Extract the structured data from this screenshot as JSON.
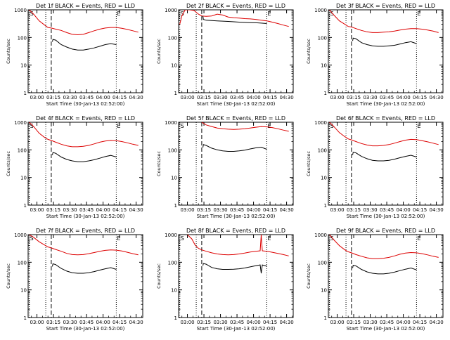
{
  "colors": {
    "events": "#000000",
    "lld": "#dd0000",
    "axes": "#000000"
  },
  "common": {
    "ylabel": "Counts/sec",
    "xlabel": "Start Time (30-Jan-13 02:52:00)",
    "yticks": [
      1,
      10,
      100,
      1000
    ],
    "ytick_labels": [
      "1",
      "10",
      "100",
      "1000"
    ],
    "xticks": [
      "03:00",
      "03:15",
      "03:30",
      "03:45",
      "04:00",
      "04:15",
      "04:30"
    ],
    "xrange_min": [
      0,
      104
    ],
    "yrange": [
      1,
      1000
    ],
    "yscale": "log",
    "marker_S": "S",
    "marker_E": "E"
  },
  "chart_data": [
    {
      "title": "Det 1f BLACK = Events, RED = LLD",
      "type": "line",
      "vlines_dotted_min": [
        1,
        16,
        80
      ],
      "vline_dashed_min": 21,
      "s_marker_min": 1,
      "e_marker_min": 80,
      "series": [
        {
          "color": "lld",
          "x": [
            1,
            5,
            10,
            15,
            18,
            21,
            25,
            30,
            35,
            40,
            45,
            50,
            55,
            60,
            65,
            70,
            75,
            80,
            85,
            90,
            95,
            100
          ],
          "y": [
            1000,
            700,
            400,
            280,
            230,
            220,
            200,
            180,
            150,
            130,
            125,
            130,
            150,
            175,
            200,
            220,
            230,
            230,
            215,
            195,
            175,
            155
          ]
        },
        {
          "color": "events",
          "x": [
            22,
            22.5,
            25,
            30,
            35,
            40,
            45,
            50,
            55,
            60,
            65,
            70,
            75,
            80
          ],
          "y": [
            70,
            85,
            80,
            55,
            45,
            38,
            35,
            35,
            38,
            42,
            48,
            55,
            60,
            55
          ]
        }
      ]
    },
    {
      "title": "Det 2f BLACK = Events, RED = LLD",
      "type": "line",
      "vlines_dotted_min": [
        1,
        16,
        80
      ],
      "vline_dashed_min": 21,
      "s_marker_min": 1,
      "e_marker_min": 80,
      "series": [
        {
          "color": "lld",
          "x": [
            1,
            3,
            6,
            10,
            14,
            18,
            21,
            25,
            30,
            35,
            40,
            45,
            50,
            55,
            60,
            65,
            70,
            75,
            80,
            85,
            90,
            95,
            100
          ],
          "y": [
            300,
            600,
            1000,
            1000,
            950,
            700,
            600,
            580,
            600,
            700,
            650,
            550,
            520,
            500,
            480,
            470,
            450,
            420,
            400,
            360,
            320,
            280,
            250
          ]
        },
        {
          "color": "events",
          "x": [
            22,
            22.5,
            25,
            30,
            35,
            40,
            45,
            50,
            55,
            60,
            65,
            70,
            75,
            80
          ],
          "y": [
            600,
            450,
            420,
            410,
            400,
            390,
            380,
            370,
            360,
            350,
            345,
            340,
            330,
            320
          ]
        }
      ]
    },
    {
      "title": "Det 3f BLACK = Events, RED = LLD",
      "type": "line",
      "vlines_dotted_min": [
        1,
        16,
        80
      ],
      "vline_dashed_min": 21,
      "s_marker_min": 1,
      "e_marker_min": 80,
      "series": [
        {
          "color": "lld",
          "x": [
            1,
            5,
            10,
            15,
            18,
            21,
            25,
            30,
            35,
            40,
            45,
            50,
            55,
            60,
            65,
            70,
            75,
            80,
            85,
            90,
            95,
            100
          ],
          "y": [
            1000,
            650,
            400,
            300,
            250,
            240,
            210,
            180,
            160,
            150,
            150,
            155,
            160,
            170,
            185,
            200,
            210,
            210,
            200,
            185,
            170,
            150
          ]
        },
        {
          "color": "events",
          "x": [
            22,
            22.5,
            25,
            30,
            35,
            40,
            45,
            50,
            55,
            60,
            65,
            70,
            75,
            80
          ],
          "y": [
            75,
            95,
            90,
            65,
            55,
            50,
            48,
            48,
            50,
            52,
            58,
            65,
            70,
            60
          ]
        }
      ]
    },
    {
      "title": "Det 4f BLACK = Events, RED = LLD",
      "type": "line",
      "vlines_dotted_min": [
        1,
        16,
        80
      ],
      "vline_dashed_min": 21,
      "s_marker_min": 1,
      "e_marker_min": 80,
      "series": [
        {
          "color": "lld",
          "x": [
            1,
            5,
            10,
            15,
            18,
            21,
            25,
            30,
            35,
            40,
            45,
            50,
            55,
            60,
            65,
            70,
            75,
            80,
            85,
            90,
            95,
            100
          ],
          "y": [
            1000,
            700,
            400,
            280,
            240,
            220,
            190,
            160,
            140,
            130,
            130,
            135,
            145,
            165,
            190,
            210,
            220,
            215,
            200,
            180,
            160,
            145
          ]
        },
        {
          "color": "events",
          "x": [
            22,
            22.5,
            25,
            30,
            35,
            40,
            45,
            50,
            55,
            60,
            65,
            70,
            75,
            80
          ],
          "y": [
            65,
            80,
            75,
            55,
            45,
            40,
            37,
            37,
            40,
            44,
            50,
            57,
            63,
            55
          ]
        }
      ]
    },
    {
      "title": "Det 5f BLACK = Events, RED = LLD",
      "type": "line",
      "vlines_dotted_min": [
        1,
        16,
        80
      ],
      "vline_dashed_min": 21,
      "s_marker_min": 1,
      "e_marker_min": 80,
      "series": [
        {
          "color": "lld",
          "x": [
            21,
            22,
            25,
            30,
            35,
            40,
            45,
            50,
            55,
            60,
            65,
            70,
            75,
            80,
            85,
            90,
            95,
            100
          ],
          "y": [
            1000,
            950,
            800,
            700,
            620,
            580,
            560,
            550,
            560,
            580,
            620,
            660,
            690,
            680,
            640,
            580,
            520,
            470
          ]
        },
        {
          "color": "events",
          "x": [
            22,
            22.5,
            25,
            30,
            35,
            40,
            45,
            50,
            55,
            60,
            65,
            70,
            75,
            80
          ],
          "y": [
            120,
            155,
            145,
            115,
            100,
            92,
            88,
            88,
            92,
            98,
            108,
            118,
            125,
            105
          ]
        }
      ]
    },
    {
      "title": "Det 6f BLACK = Events, RED = LLD",
      "type": "line",
      "vlines_dotted_min": [
        1,
        16,
        80
      ],
      "vline_dashed_min": 21,
      "s_marker_min": 1,
      "e_marker_min": 80,
      "series": [
        {
          "color": "lld",
          "x": [
            1,
            5,
            10,
            15,
            18,
            21,
            25,
            30,
            35,
            40,
            45,
            50,
            55,
            60,
            65,
            70,
            75,
            80,
            85,
            90,
            95,
            100
          ],
          "y": [
            1000,
            700,
            420,
            300,
            250,
            230,
            200,
            170,
            150,
            140,
            140,
            145,
            155,
            175,
            200,
            225,
            240,
            235,
            215,
            195,
            175,
            155
          ]
        },
        {
          "color": "events",
          "x": [
            22,
            22.5,
            25,
            30,
            35,
            40,
            45,
            50,
            55,
            60,
            65,
            70,
            75,
            80
          ],
          "y": [
            65,
            82,
            78,
            58,
            48,
            42,
            40,
            40,
            42,
            46,
            52,
            58,
            64,
            55
          ]
        }
      ]
    },
    {
      "title": "Det 7f BLACK = Events, RED = LLD",
      "type": "line",
      "vlines_dotted_min": [
        1,
        16,
        80
      ],
      "vline_dashed_min": 21,
      "s_marker_min": 1,
      "e_marker_min": 80,
      "series": [
        {
          "color": "lld",
          "x": [
            1,
            5,
            10,
            15,
            18,
            21,
            25,
            30,
            35,
            40,
            45,
            50,
            55,
            60,
            65,
            70,
            75,
            80,
            85,
            90,
            95,
            100
          ],
          "y": [
            1000,
            800,
            550,
            420,
            360,
            330,
            290,
            250,
            210,
            190,
            185,
            190,
            205,
            225,
            250,
            270,
            280,
            275,
            255,
            230,
            205,
            185
          ]
        },
        {
          "color": "events",
          "x": [
            22,
            22.5,
            25,
            30,
            35,
            40,
            45,
            50,
            55,
            60,
            65,
            70,
            75,
            80
          ],
          "y": [
            70,
            88,
            82,
            60,
            48,
            42,
            40,
            40,
            42,
            46,
            52,
            58,
            64,
            55
          ]
        }
      ]
    },
    {
      "title": "Det 8f BLACK = Events, RED = LLD",
      "type": "line",
      "vlines_dotted_min": [
        1,
        16,
        80
      ],
      "vline_dashed_min": 21,
      "s_marker_min": 1,
      "e_marker_min": 80,
      "series": [
        {
          "color": "lld",
          "x": [
            8,
            12,
            15,
            18,
            21,
            25,
            30,
            35,
            40,
            45,
            50,
            55,
            60,
            65,
            70,
            74,
            75,
            76,
            80,
            85,
            90,
            95,
            100
          ],
          "y": [
            1000,
            700,
            420,
            320,
            280,
            250,
            220,
            200,
            190,
            185,
            190,
            200,
            215,
            235,
            250,
            260,
            1000,
            260,
            250,
            230,
            210,
            190,
            170
          ]
        },
        {
          "color": "events",
          "x": [
            22,
            22.5,
            25,
            30,
            35,
            40,
            45,
            50,
            55,
            60,
            65,
            70,
            74,
            75,
            76,
            80
          ],
          "y": [
            75,
            90,
            85,
            65,
            58,
            55,
            55,
            56,
            58,
            62,
            68,
            75,
            80,
            40,
            80,
            72
          ]
        }
      ]
    },
    {
      "title": "Det 9f BLACK = Events, RED = LLD",
      "type": "line",
      "vlines_dotted_min": [
        1,
        16,
        80
      ],
      "vline_dashed_min": 21,
      "s_marker_min": 1,
      "e_marker_min": 80,
      "series": [
        {
          "color": "lld",
          "x": [
            1,
            5,
            10,
            15,
            18,
            21,
            25,
            30,
            35,
            40,
            45,
            50,
            55,
            60,
            65,
            70,
            75,
            80,
            85,
            90,
            95,
            100
          ],
          "y": [
            1000,
            650,
            400,
            280,
            240,
            220,
            190,
            165,
            145,
            135,
            135,
            140,
            150,
            170,
            195,
            215,
            225,
            220,
            205,
            185,
            165,
            150
          ]
        },
        {
          "color": "events",
          "x": [
            22,
            22.5,
            25,
            30,
            35,
            40,
            45,
            50,
            55,
            60,
            65,
            70,
            75,
            80
          ],
          "y": [
            62,
            78,
            74,
            55,
            45,
            40,
            38,
            38,
            40,
            44,
            50,
            56,
            62,
            53
          ]
        }
      ]
    }
  ]
}
